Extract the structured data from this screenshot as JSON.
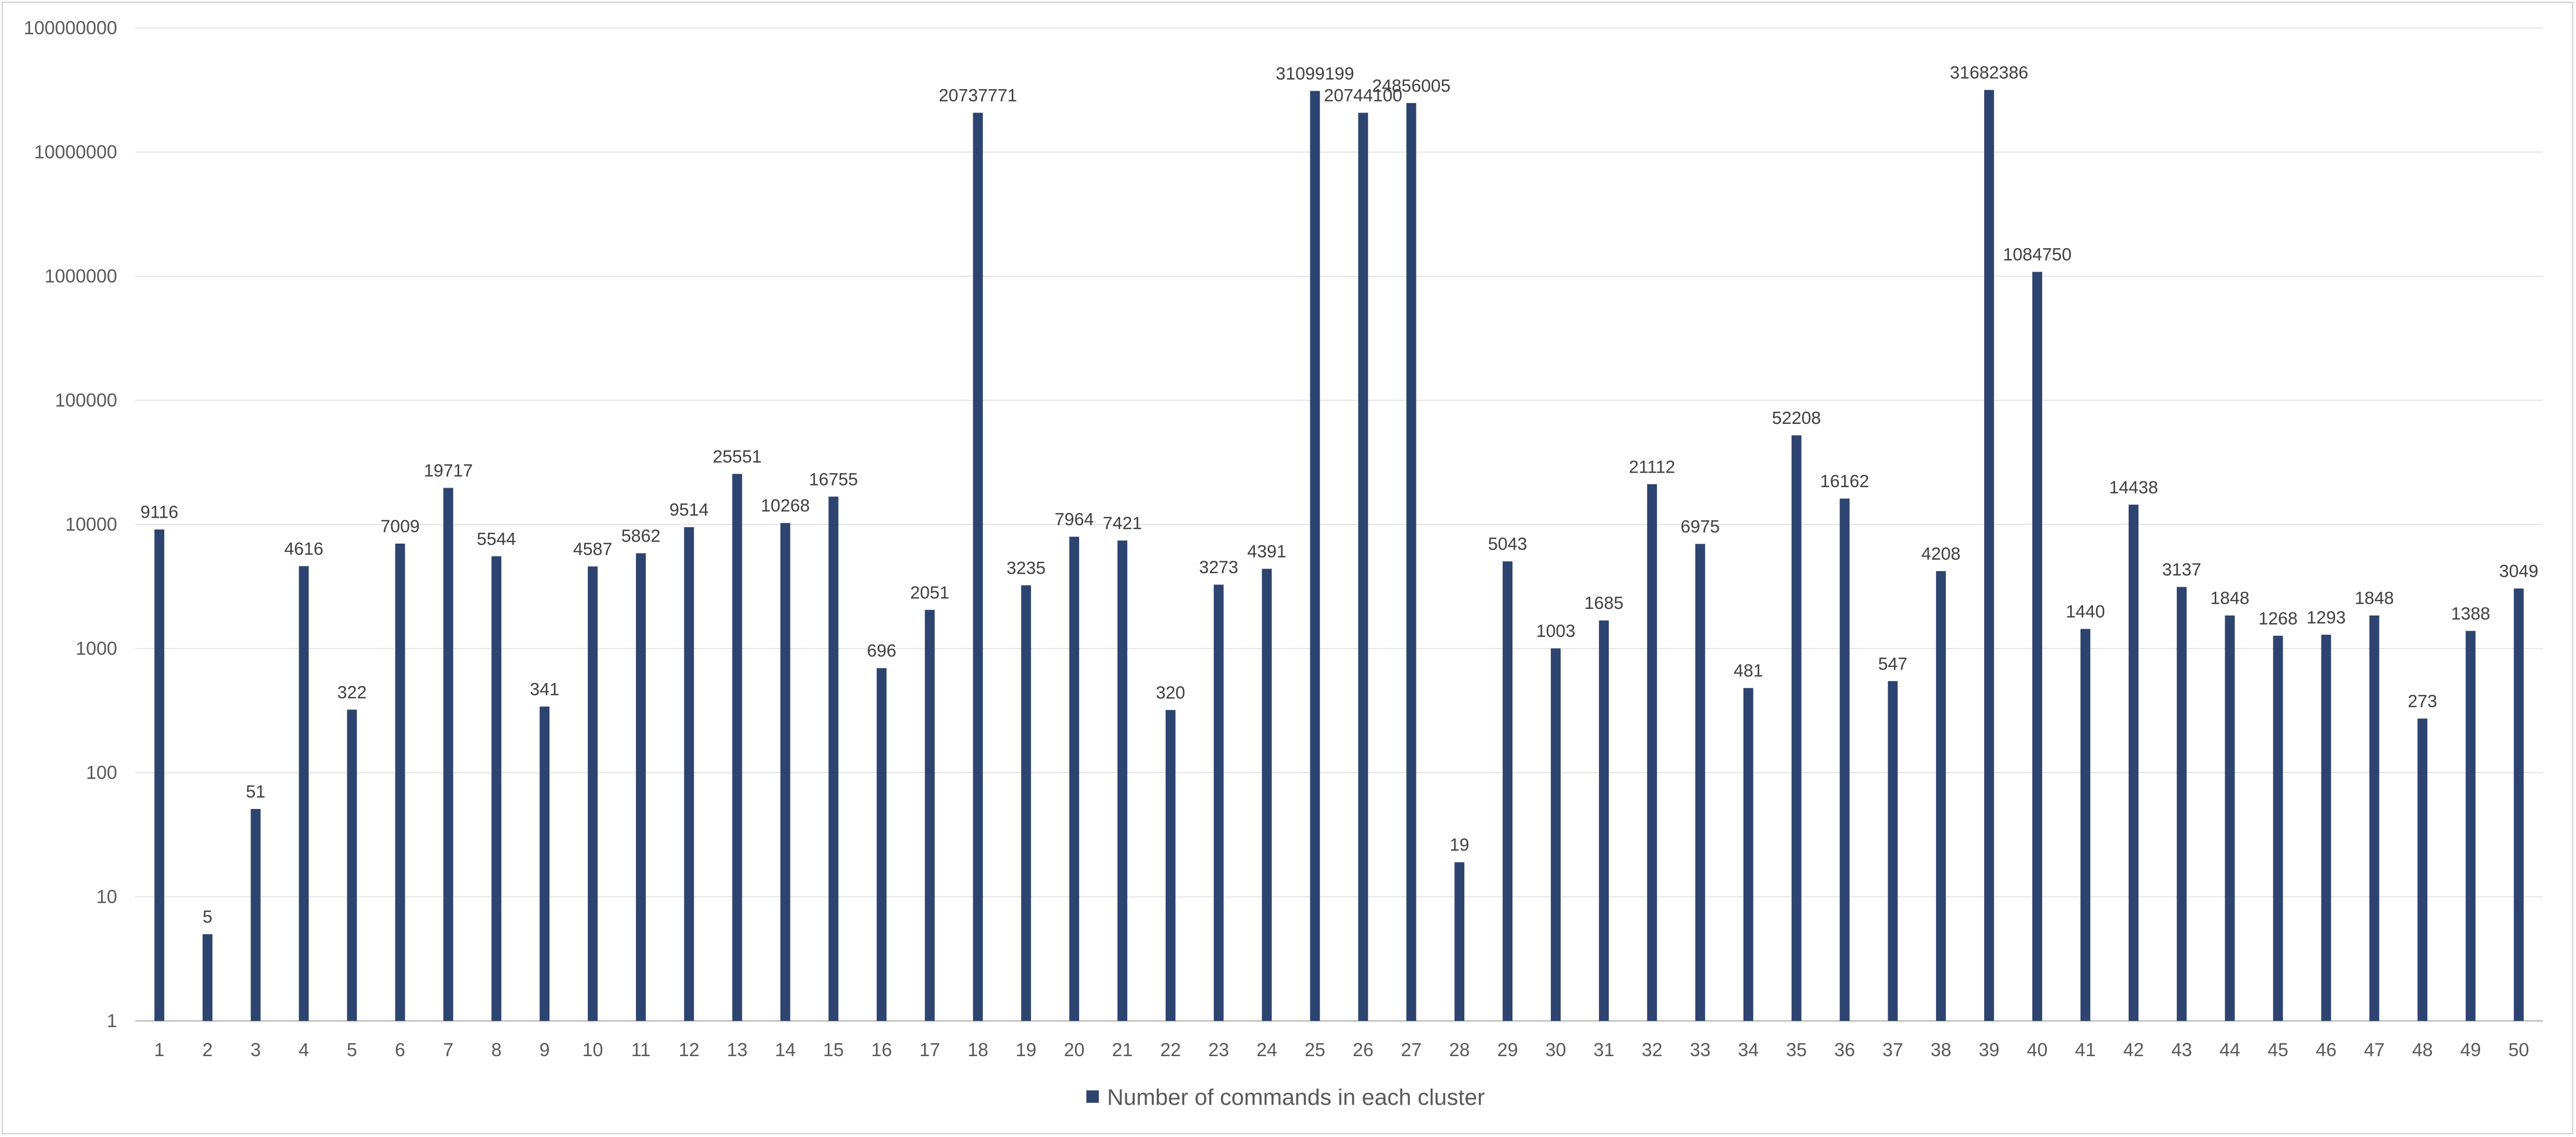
{
  "chart_data": {
    "type": "bar",
    "y_scale": "log10",
    "ylim": [
      1,
      100000000
    ],
    "y_ticks": [
      "1",
      "10",
      "100",
      "1000",
      "10000",
      "100000",
      "1000000",
      "10000000",
      "100000000"
    ],
    "grid": "horizontal major gridlines",
    "legend_position": "bottom-center",
    "bar_color": "#2e4470",
    "categories": [
      "1",
      "2",
      "3",
      "4",
      "5",
      "6",
      "7",
      "8",
      "9",
      "10",
      "11",
      "12",
      "13",
      "14",
      "15",
      "16",
      "17",
      "18",
      "19",
      "20",
      "21",
      "22",
      "23",
      "24",
      "25",
      "26",
      "27",
      "28",
      "29",
      "30",
      "31",
      "32",
      "33",
      "34",
      "35",
      "36",
      "37",
      "38",
      "39",
      "40",
      "41",
      "42",
      "43",
      "44",
      "45",
      "46",
      "47",
      "48",
      "49",
      "50"
    ],
    "series": [
      {
        "name": "Number of commands in each cluster",
        "values": [
          9116,
          5,
          51,
          4616,
          322,
          7009,
          19717,
          5544,
          341,
          4587,
          5862,
          9514,
          25551,
          10268,
          16755,
          696,
          2051,
          20737771,
          3235,
          7964,
          7421,
          320,
          3273,
          4391,
          31099199,
          20744100,
          24856005,
          19,
          5043,
          1003,
          1685,
          21112,
          6975,
          481,
          52208,
          16162,
          547,
          4208,
          31682386,
          1084750,
          1440,
          14438,
          3137,
          1848,
          1268,
          1293,
          1848,
          273,
          1388,
          3049
        ]
      }
    ]
  }
}
